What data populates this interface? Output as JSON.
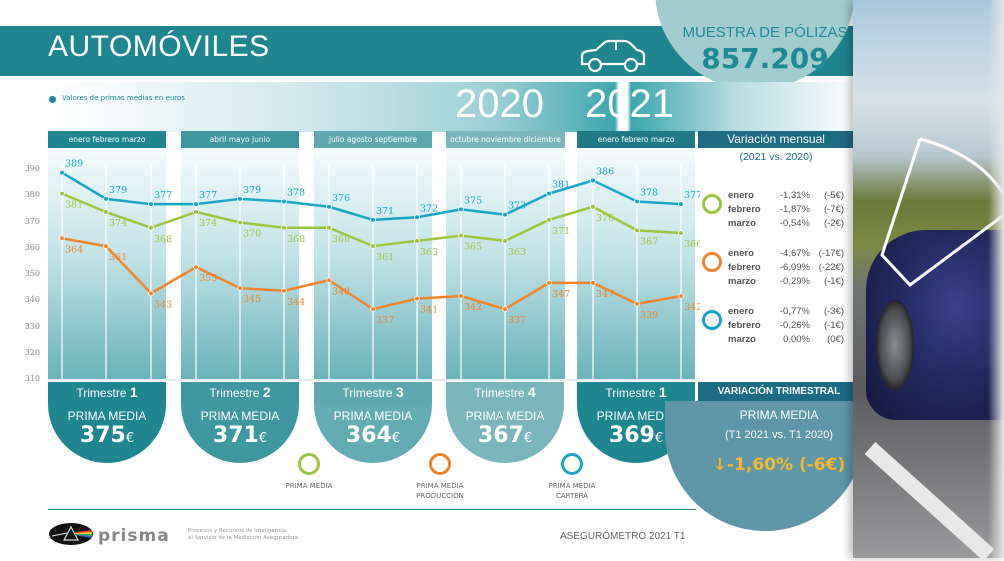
{
  "header": {
    "title": "AUTOMÓVILES",
    "icon": "car-icon",
    "muestra_label": "MUESTRA DE PÓLIZAS",
    "muestra_value": "857.209"
  },
  "legend_caption": "Valores de primas medias en euros",
  "years": [
    "2020",
    "2021"
  ],
  "month_groups": [
    "enero  febrero  marzo",
    "abril  mayo  junio",
    "julio  agosto  septiembre",
    "octubre  noviembre  diciembre",
    "enero  febrero  marzo"
  ],
  "quarters": [
    {
      "prefix": "Trimestre ",
      "num": "1",
      "pm_label": "PRIMA MEDIA",
      "value": "375",
      "unit": "€"
    },
    {
      "prefix": "Trimestre ",
      "num": "2",
      "pm_label": "PRIMA MEDIA",
      "value": "371",
      "unit": "€"
    },
    {
      "prefix": "Trimestre ",
      "num": "3",
      "pm_label": "PRIMA MEDIA",
      "value": "364",
      "unit": "€"
    },
    {
      "prefix": "Trimestre ",
      "num": "4",
      "pm_label": "PRIMA MEDIA",
      "value": "367",
      "unit": "€"
    },
    {
      "prefix": "Trimestre ",
      "num": "1",
      "pm_label": "PRIMA MEDIA",
      "value": "369",
      "unit": "€"
    }
  ],
  "variacion_mensual": {
    "title": "Variación mensual",
    "subtitle": "(2021 vs. 2020)",
    "groups": [
      {
        "series": "PRIMA MEDIA",
        "color": "#9dc43f",
        "rows": [
          {
            "month": "enero",
            "pct": "-1,31%",
            "eur": "(-5€)"
          },
          {
            "month": "febrero",
            "pct": "-1,87%",
            "eur": "(-7€)"
          },
          {
            "month": "marzo",
            "pct": "-0,54%",
            "eur": "(-2€)"
          }
        ]
      },
      {
        "series": "PRIMA MEDIA PRODUCCIÓN",
        "color": "#f0852e",
        "rows": [
          {
            "month": "enero",
            "pct": "-4,67%",
            "eur": "(-17€)"
          },
          {
            "month": "febrero",
            "pct": "-6,09%",
            "eur": "(-22€)"
          },
          {
            "month": "marzo",
            "pct": "-0,29%",
            "eur": "(-1€)"
          }
        ]
      },
      {
        "series": "PRIMA MEDIA CARTERA",
        "color": "#1aa7c4",
        "rows": [
          {
            "month": "enero",
            "pct": "-0,77%",
            "eur": "(-3€)"
          },
          {
            "month": "febrero",
            "pct": "-0,26%",
            "eur": "(-1€)"
          },
          {
            "month": "marzo",
            "pct": "0,00%",
            "eur": "(0€)"
          }
        ]
      }
    ]
  },
  "variacion_trimestral": {
    "title": "VARIACIÓN TRIMESTRAL",
    "pm_label": "PRIMA MEDIA",
    "subtitle": "(T1 2021 vs. T1 2020)",
    "arrow": "↓",
    "value": "-1,60% (-6€)"
  },
  "legend": [
    {
      "label": "PRIMA MEDIA",
      "color": "#9dc43f"
    },
    {
      "label": "PRIMA MEDIA\nPRODUCCIÓN",
      "color": "#f0852e"
    },
    {
      "label": "PRIMA MEDIA\nCARTERA",
      "color": "#1aa7c4"
    }
  ],
  "footer": {
    "brand": "prisma",
    "tagline_1": "Procesos y Recursos de Inteligencia",
    "tagline_2": "al Servicio de la Mediación Aseguradora",
    "right": "ASEGURÓMETRO 2021 T1"
  },
  "chart_data": {
    "type": "line",
    "title": "AUTOMÓVILES",
    "ylabel": "Valores de primas medias en euros",
    "xlabel": "",
    "ylim": [
      310,
      390
    ],
    "yticks": [
      310,
      320,
      330,
      340,
      350,
      360,
      370,
      380,
      390
    ],
    "grid": true,
    "categories": [
      "ene 2020",
      "feb 2020",
      "mar 2020",
      "abr 2020",
      "may 2020",
      "jun 2020",
      "jul 2020",
      "ago 2020",
      "sep 2020",
      "oct 2020",
      "nov 2020",
      "dic 2020",
      "ene 2021",
      "feb 2021",
      "mar 2021"
    ],
    "series": [
      {
        "name": "PRIMA MEDIA CARTERA",
        "color": "#1aa7c4",
        "values": [
          389,
          379,
          377,
          377,
          379,
          378,
          376,
          371,
          372,
          375,
          373,
          381,
          386,
          378,
          377
        ]
      },
      {
        "name": "PRIMA MEDIA",
        "color": "#9dc43f",
        "values": [
          381,
          374,
          368,
          374,
          370,
          368,
          368,
          361,
          363,
          365,
          363,
          371,
          376,
          367,
          366
        ]
      },
      {
        "name": "PRIMA MEDIA PRODUCCIÓN",
        "color": "#f0852e",
        "values": [
          364,
          361,
          343,
          353,
          345,
          344,
          348,
          337,
          341,
          342,
          337,
          347,
          347,
          339,
          342
        ]
      }
    ]
  }
}
